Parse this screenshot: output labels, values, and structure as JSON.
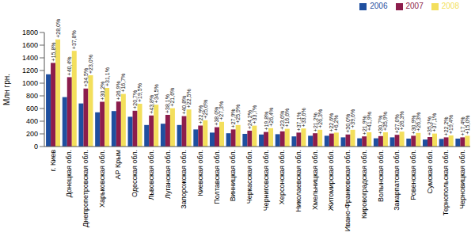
{
  "chart_data": {
    "type": "bar",
    "y_label": "Млн грн.",
    "ylim": [
      0,
      1800
    ],
    "yticks": [
      0,
      200,
      400,
      600,
      800,
      1000,
      1200,
      1400,
      1600,
      1800
    ],
    "grid": false,
    "legend": "top-right",
    "categories": [
      "г. Киев",
      "Донецкая обл.",
      "Днепропетровская обл.",
      "Харьковская обл.",
      "АР Крым",
      "Одесская обл.",
      "Львовская обл.",
      "Луганская обл.",
      "Запорожская обл.",
      "Киевская обл.",
      "Полтавская обл.",
      "Винницкая обл.",
      "Черкасская обл.",
      "Черниговская обл.",
      "Херсонская обл.",
      "Николаевская обл.",
      "Хмельницкая обл.",
      "Житомирская обл.",
      "Ивано-Франковская обл.",
      "Кировоградская обл.",
      "Волынская обл.",
      "Закарпатская обл.",
      "Ровенская обл.",
      "Сумская обл.",
      "Тернопольская обл.",
      "Черновицкая обл."
    ],
    "series": [
      {
        "name": "2006",
        "color": "#1f4f9f",
        "values": [
          1140,
          780,
          680,
          540,
          560,
          470,
          340,
          360,
          340,
          270,
          220,
          210,
          200,
          190,
          195,
          160,
          170,
          170,
          145,
          130,
          130,
          145,
          125,
          110,
          120,
          125
        ]
      },
      {
        "name": "2007",
        "color": "#8c1d4c",
        "values": [
          1320,
          1095,
          915,
          705,
          710,
          565,
          490,
          500,
          480,
          330,
          305,
          270,
          250,
          230,
          240,
          220,
          210,
          205,
          190,
          160,
          165,
          185,
          170,
          150,
          145,
          145
        ],
        "growth_labels": [
          "+15,8%",
          "+40,4%",
          "+34,5%",
          "+30,2%",
          "+26,9%",
          "+20,7%",
          "+43,8%",
          "+38,1%",
          "+40,8%",
          "+22,9%",
          "+38,0%",
          "+27,9%",
          "+24,2%",
          "+19,8%",
          "+23,6%",
          "+37,1%",
          "+21,2%",
          "+22,6%",
          "+30,0%",
          "+21,9%",
          "+30,7%",
          "+27,0%",
          "+30,9%",
          "+35,2%",
          "+22,2%",
          "+17,4%"
        ]
      },
      {
        "name": "2008",
        "color": "#f3df5c",
        "values": [
          1690,
          1510,
          1125,
          925,
          830,
          675,
          660,
          605,
          585,
          415,
          390,
          340,
          330,
          290,
          280,
          285,
          265,
          220,
          265,
          225,
          225,
          235,
          215,
          205,
          175,
          170
        ],
        "growth_labels": [
          "+28,0%",
          "+37,8%",
          "+23,0%",
          "+31,1%",
          "+16,7%",
          "+19,5%",
          "+34,5%",
          "+21,6%",
          "+22,5%",
          "+25,6%",
          "+27,3%",
          "+25,9%",
          "+33,7%",
          "+26,4%",
          "+16,6%",
          "+33,6%",
          "+26,3%",
          "+6,2%",
          "+39,6%",
          "+41,9%",
          "+35,9%",
          "+26,3%",
          "+26,3%",
          "+37,1%",
          "+19,4%",
          "+15,0%"
        ]
      }
    ]
  }
}
